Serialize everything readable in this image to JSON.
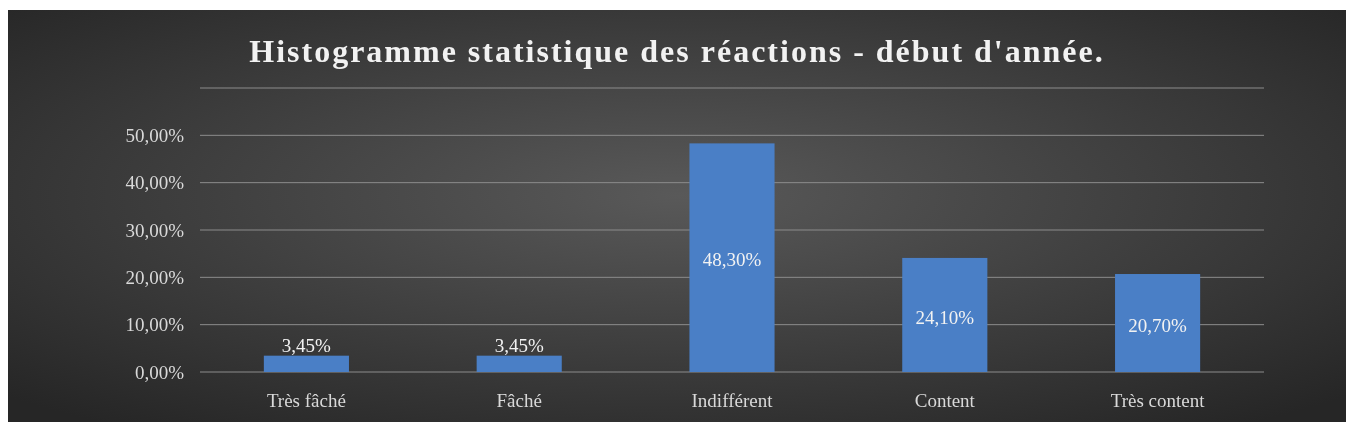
{
  "chart_data": {
    "type": "bar",
    "title": "Histogramme statistique des réactions - début d'année.",
    "categories": [
      "Très fâché",
      "Fâché",
      "Indifférent",
      "Content",
      "Très content"
    ],
    "values": [
      3.45,
      3.45,
      48.3,
      24.1,
      20.7
    ],
    "value_labels": [
      "3,45%",
      "3,45%",
      "48,30%",
      "24,10%",
      "20,70%"
    ],
    "color": "#4a7fc6",
    "ylim": [
      0,
      60
    ],
    "yticks": [
      {
        "value": 0,
        "label": "0,00%"
      },
      {
        "value": 10,
        "label": "10,00%"
      },
      {
        "value": 20,
        "label": "20,00%"
      },
      {
        "value": 30,
        "label": "30,00%"
      },
      {
        "value": 40,
        "label": "40,00%"
      },
      {
        "value": 50,
        "label": "50,00%"
      },
      {
        "value": 60,
        "label": null
      }
    ],
    "grid": "y"
  }
}
